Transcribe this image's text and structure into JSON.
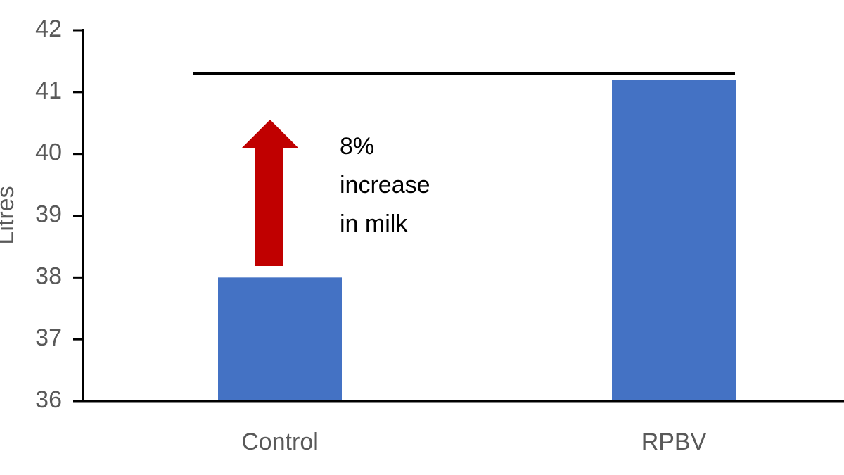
{
  "chart_data": {
    "type": "bar",
    "y_label": "Litres",
    "categories": [
      "Control",
      "RPBV"
    ],
    "values": [
      38,
      41.2
    ],
    "color": "#4472c4",
    "ylim": [
      36,
      42
    ],
    "yticks": [
      36,
      37,
      38,
      39,
      40,
      41,
      42
    ],
    "reference_line": 41.3,
    "annotation": [
      "8%",
      "increase",
      "in milk"
    ]
  }
}
